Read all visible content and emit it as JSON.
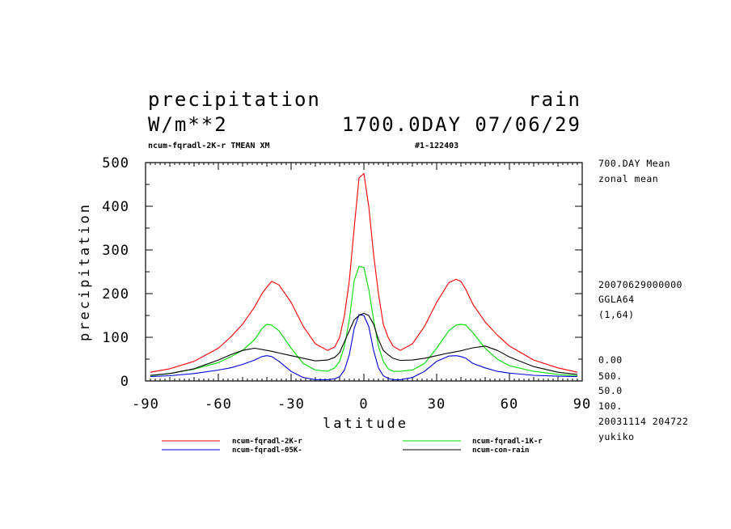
{
  "header": {
    "title_left": "precipitation",
    "title_right": "rain",
    "units": "W/m**2",
    "time_label": "1700.0DAY 07/06/29",
    "run_label": "ncum-fqradl-2K-r TMEAN XM",
    "run_id": "#1-122403"
  },
  "sidebar": {
    "lines_top": [
      "700.DAY Mean",
      "zonal mean"
    ],
    "lines_mid": [
      "20070629000000",
      "GGLA64",
      "(1,64)"
    ],
    "lines_bottom": [
      "0.00",
      "500.",
      "50.0",
      "100.",
      "20031114 204722",
      "yukiko"
    ]
  },
  "chart_data": {
    "type": "line",
    "title": "precipitation",
    "xlabel": "latitude",
    "ylabel": "precipitation",
    "xlim": [
      -90,
      90
    ],
    "ylim": [
      0,
      500
    ],
    "x_ticks": [
      -90,
      -60,
      -30,
      0,
      30,
      60,
      90
    ],
    "x_tick_labels": [
      "-90",
      "-60",
      "-30",
      "0",
      "30",
      "60",
      "90"
    ],
    "y_ticks": [
      0,
      100,
      200,
      300,
      400,
      500
    ],
    "y_tick_labels": [
      "0",
      "100",
      "200",
      "300",
      "400",
      "500"
    ],
    "grid": false,
    "legend_position": "bottom",
    "x": [
      -88,
      -80,
      -70,
      -60,
      -55,
      -50,
      -45,
      -42,
      -40,
      -38,
      -35,
      -30,
      -25,
      -20,
      -15,
      -12,
      -10,
      -8,
      -6,
      -4,
      -2,
      0,
      2,
      4,
      6,
      8,
      10,
      12,
      15,
      20,
      25,
      30,
      35,
      38,
      40,
      42,
      45,
      50,
      55,
      60,
      70,
      80,
      88
    ],
    "series": [
      {
        "name": "ncum-fqradl-2K-r",
        "color": "#ff0000",
        "values": [
          20,
          28,
          45,
          75,
          100,
          130,
          170,
          200,
          215,
          228,
          220,
          180,
          125,
          85,
          70,
          78,
          100,
          150,
          230,
          350,
          465,
          475,
          400,
          290,
          200,
          130,
          100,
          80,
          70,
          85,
          125,
          180,
          225,
          233,
          228,
          210,
          175,
          135,
          105,
          80,
          48,
          30,
          20
        ]
      },
      {
        "name": "ncum-fqradl-1K-r",
        "color": "#00dd00",
        "values": [
          12,
          17,
          27,
          42,
          55,
          70,
          95,
          120,
          130,
          128,
          115,
          75,
          40,
          25,
          22,
          30,
          45,
          80,
          140,
          230,
          262,
          260,
          210,
          140,
          80,
          45,
          28,
          22,
          22,
          25,
          40,
          75,
          115,
          128,
          130,
          128,
          110,
          75,
          50,
          35,
          22,
          15,
          12
        ]
      },
      {
        "name": "ncum-fqradl-05K-",
        "color": "#0000dd",
        "values": [
          10,
          12,
          17,
          25,
          30,
          38,
          48,
          56,
          58,
          56,
          45,
          22,
          8,
          3,
          3,
          5,
          10,
          25,
          60,
          120,
          152,
          150,
          125,
          70,
          30,
          12,
          6,
          3,
          3,
          8,
          22,
          45,
          57,
          58,
          56,
          52,
          40,
          30,
          22,
          18,
          13,
          11,
          10
        ]
      },
      {
        "name": "ncum-con-rain",
        "color": "#000000",
        "values": [
          13,
          17,
          28,
          48,
          60,
          70,
          75,
          72,
          70,
          68,
          64,
          58,
          52,
          46,
          48,
          54,
          65,
          90,
          115,
          140,
          150,
          155,
          150,
          130,
          95,
          70,
          60,
          52,
          47,
          48,
          52,
          58,
          64,
          67,
          69,
          72,
          76,
          80,
          70,
          55,
          33,
          20,
          15
        ]
      }
    ]
  }
}
